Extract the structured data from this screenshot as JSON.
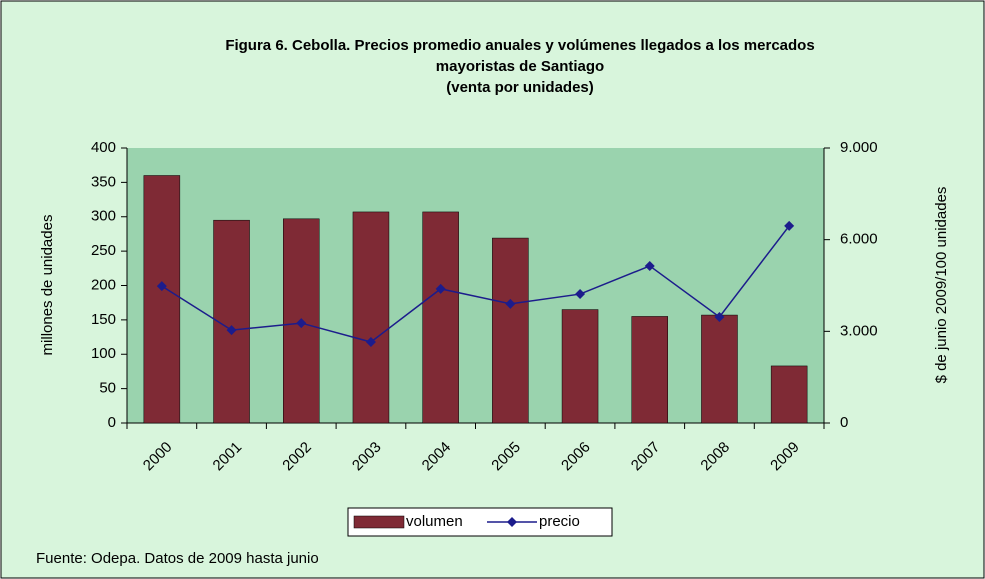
{
  "chart_data": {
    "type": "bar",
    "title": [
      "Figura 6. Cebolla. Precios promedio anuales y volúmenes llegados a los mercados",
      "mayoristas de Santiago",
      "(venta por unidades)"
    ],
    "categories": [
      "2000",
      "2001",
      "2002",
      "2003",
      "2004",
      "2005",
      "2006",
      "2007",
      "2008",
      "2009"
    ],
    "series": [
      {
        "name": "volumen",
        "type": "bar",
        "color": "#7f2a35",
        "values": [
          360,
          295,
          297,
          307,
          307,
          269,
          165,
          155,
          157,
          83
        ]
      },
      {
        "name": "precio",
        "type": "line",
        "axis": "y2",
        "color": "#1c1c8c",
        "values": [
          4480,
          3040,
          3270,
          2650,
          4390,
          3900,
          4220,
          5140,
          3470,
          6450
        ]
      }
    ],
    "ylabel": "millones de unidades",
    "y2label": "$ de junio 2009/100 unidades",
    "ylim": [
      0,
      400
    ],
    "yticks": [
      0,
      50,
      100,
      150,
      200,
      250,
      300,
      350,
      400
    ],
    "y2lim": [
      0,
      9000
    ],
    "y2ticks": [
      0,
      {
        "value": 3000,
        "label": "3.000"
      },
      {
        "value": 6000,
        "label": "6.000"
      },
      {
        "value": 9000,
        "label": "9.000"
      }
    ],
    "footnote": "Fuente: Odepa. Datos de 2009 hasta junio",
    "legend": "bottom"
  }
}
